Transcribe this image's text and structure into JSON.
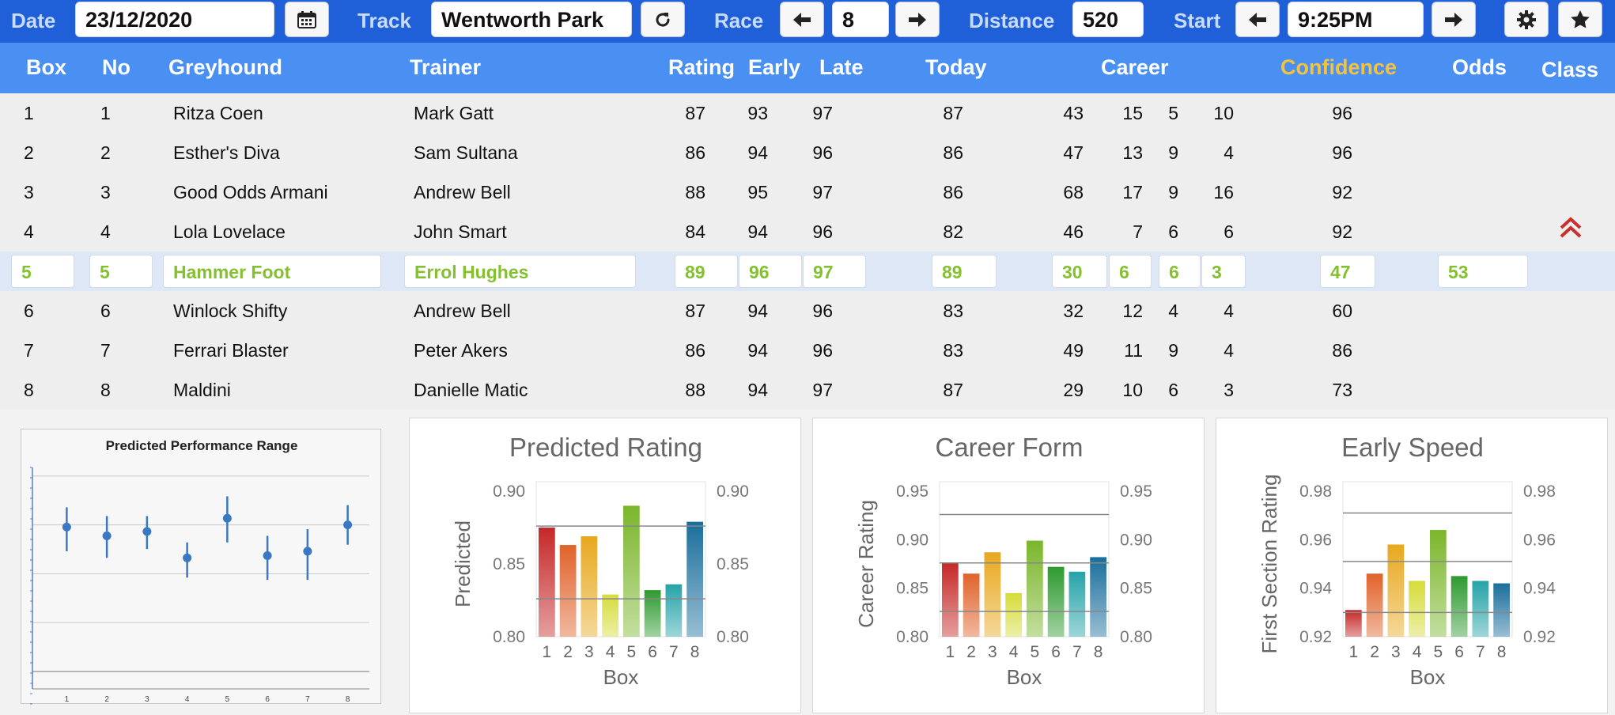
{
  "toolbar": {
    "date_label": "Date",
    "date_value": "23/12/2020",
    "track_label": "Track",
    "track_value": "Wentworth Park",
    "race_label": "Race",
    "race_value": "8",
    "distance_label": "Distance",
    "distance_value": "520",
    "start_label": "Start",
    "start_value": "9:25PM",
    "icons": [
      "calendar-icon",
      "refresh-icon",
      "arrow-left-icon",
      "arrow-right-icon",
      "gear-icon",
      "star-icon"
    ]
  },
  "columns": {
    "box": "Box",
    "no": "No",
    "greyhound": "Greyhound",
    "trainer": "Trainer",
    "rating": "Rating",
    "early": "Early",
    "late": "Late",
    "today": "Today",
    "career": "Career",
    "confidence": "Confidence",
    "odds": "Odds",
    "class": "Class"
  },
  "rows": [
    {
      "box": "1",
      "no": "1",
      "greyhound": "Ritza Coen",
      "trainer": "Mark Gatt",
      "rating": "87",
      "early": "93",
      "late": "97",
      "today": "87",
      "c1": "43",
      "c2": "15",
      "c3": "5",
      "c4": "10",
      "confidence": "96",
      "odds": ""
    },
    {
      "box": "2",
      "no": "2",
      "greyhound": "Esther's Diva",
      "trainer": "Sam Sultana",
      "rating": "86",
      "early": "94",
      "late": "96",
      "today": "86",
      "c1": "47",
      "c2": "13",
      "c3": "9",
      "c4": "4",
      "confidence": "96",
      "odds": ""
    },
    {
      "box": "3",
      "no": "3",
      "greyhound": "Good Odds Armani",
      "trainer": "Andrew Bell",
      "rating": "88",
      "early": "95",
      "late": "97",
      "today": "86",
      "c1": "68",
      "c2": "17",
      "c3": "9",
      "c4": "16",
      "confidence": "92",
      "odds": ""
    },
    {
      "box": "4",
      "no": "4",
      "greyhound": "Lola Lovelace",
      "trainer": "John Smart",
      "rating": "84",
      "early": "94",
      "late": "96",
      "today": "82",
      "c1": "46",
      "c2": "7",
      "c3": "6",
      "c4": "6",
      "confidence": "92",
      "odds": ""
    },
    {
      "box": "5",
      "no": "5",
      "greyhound": "Hammer Foot",
      "trainer": "Errol Hughes",
      "rating": "89",
      "early": "96",
      "late": "97",
      "today": "89",
      "c1": "30",
      "c2": "6",
      "c3": "6",
      "c4": "3",
      "confidence": "47",
      "odds": "53"
    },
    {
      "box": "6",
      "no": "6",
      "greyhound": "Winlock Shifty",
      "trainer": "Andrew Bell",
      "rating": "87",
      "early": "94",
      "late": "96",
      "today": "83",
      "c1": "32",
      "c2": "12",
      "c3": "4",
      "c4": "4",
      "confidence": "60",
      "odds": ""
    },
    {
      "box": "7",
      "no": "7",
      "greyhound": "Ferrari Blaster",
      "trainer": "Peter Akers",
      "rating": "86",
      "early": "94",
      "late": "96",
      "today": "83",
      "c1": "49",
      "c2": "11",
      "c3": "9",
      "c4": "4",
      "confidence": "86",
      "odds": ""
    },
    {
      "box": "8",
      "no": "8",
      "greyhound": "Maldini",
      "trainer": "Danielle Matic",
      "rating": "88",
      "early": "94",
      "late": "97",
      "today": "87",
      "c1": "29",
      "c2": "10",
      "c3": "6",
      "c4": "3",
      "confidence": "73",
      "odds": ""
    }
  ],
  "selected_row": 4,
  "class_indicator": "double-chevron-up-icon",
  "colors": {
    "toolbar_bg": "#1f5fd8",
    "header_bg": "#4a90f2",
    "confidence_header": "#f5c33b",
    "selected_text": "#84c02f",
    "chevron": "#c9302c",
    "bar_palette": [
      "#c62828",
      "#e0622a",
      "#e8a81e",
      "#d6dc3a",
      "#7ab62b",
      "#2e9a2f",
      "#25a3a8",
      "#1a6e9c"
    ]
  },
  "chart_data": [
    {
      "type": "scatter",
      "title": "Predicted Performance Range",
      "x": [
        1,
        2,
        3,
        4,
        5,
        6,
        7,
        8
      ],
      "y": [
        0.87,
        0.866,
        0.868,
        0.856,
        0.874,
        0.857,
        0.859,
        0.871
      ],
      "y_low": [
        0.859,
        0.856,
        0.86,
        0.847,
        0.863,
        0.846,
        0.846,
        0.862
      ],
      "y_high": [
        0.879,
        0.875,
        0.875,
        0.863,
        0.884,
        0.866,
        0.869,
        0.88
      ],
      "ylim": [
        0.8,
        0.9
      ],
      "xlabel": "",
      "ylabel": "",
      "grid": true
    },
    {
      "type": "bar",
      "title": "Predicted Rating",
      "categories": [
        "1",
        "2",
        "3",
        "4",
        "5",
        "6",
        "7",
        "8"
      ],
      "values": [
        0.875,
        0.863,
        0.869,
        0.829,
        0.89,
        0.832,
        0.836,
        0.879
      ],
      "xlabel": "Box",
      "ylabel": "Predicted",
      "ylim": [
        0.8,
        0.9
      ],
      "yticks": [
        "0.80",
        "0.85",
        "0.90"
      ],
      "ref_lines": [
        0.876,
        0.826
      ],
      "secondary_axis": true
    },
    {
      "type": "bar",
      "title": "Career Form",
      "categories": [
        "1",
        "2",
        "3",
        "4",
        "5",
        "6",
        "7",
        "8"
      ],
      "values": [
        0.876,
        0.865,
        0.887,
        0.845,
        0.899,
        0.872,
        0.867,
        0.882
      ],
      "xlabel": "Box",
      "ylabel": "Career Rating",
      "ylim": [
        0.8,
        0.95
      ],
      "yticks": [
        "0.80",
        "0.85",
        "0.90",
        "0.95"
      ],
      "ref_lines": [
        0.926,
        0.876,
        0.826
      ],
      "secondary_axis": true
    },
    {
      "type": "bar",
      "title": "Early Speed",
      "categories": [
        "1",
        "2",
        "3",
        "4",
        "5",
        "6",
        "7",
        "8"
      ],
      "values": [
        0.931,
        0.946,
        0.958,
        0.943,
        0.964,
        0.945,
        0.943,
        0.942
      ],
      "xlabel": "Box",
      "ylabel": "First Section Rating",
      "ylim": [
        0.92,
        0.98
      ],
      "yticks": [
        "0.92",
        "0.94",
        "0.96",
        "0.98"
      ],
      "ref_lines": [
        0.971,
        0.951,
        0.93
      ],
      "secondary_axis": true
    }
  ]
}
